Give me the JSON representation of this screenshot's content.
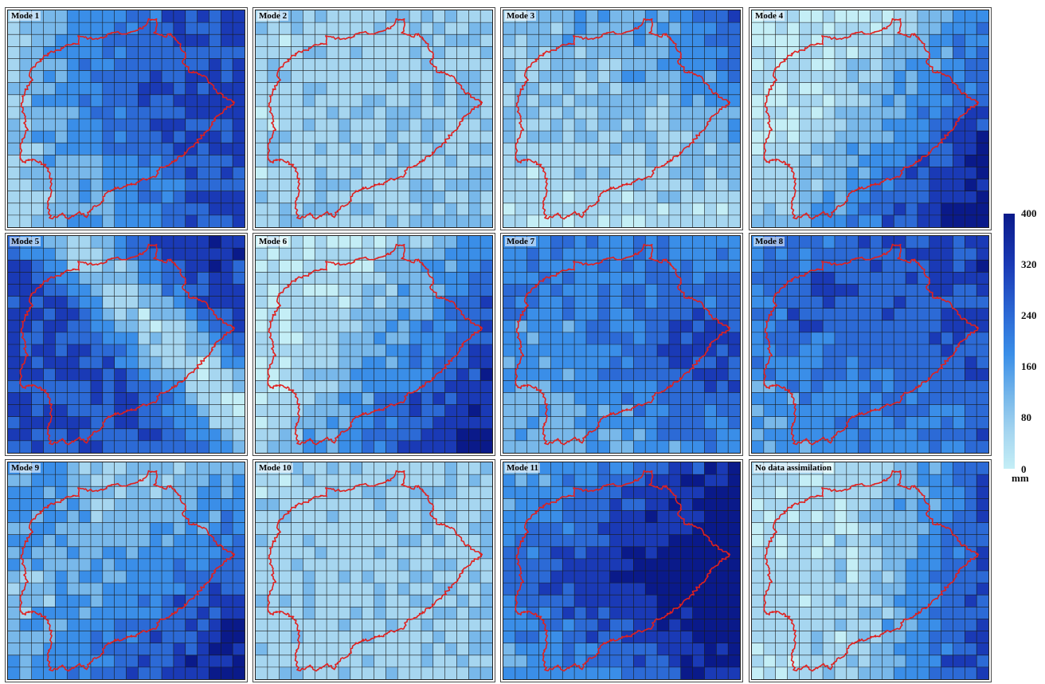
{
  "panels": [
    {
      "label": "Mode 1",
      "pattern": "center-east-high"
    },
    {
      "label": "Mode 2",
      "pattern": "uniform-low"
    },
    {
      "label": "Mode 3",
      "pattern": "north-moderate"
    },
    {
      "label": "Mode 4",
      "pattern": "southeast-diagonal-high"
    },
    {
      "label": "Mode 5",
      "pattern": "northwest-southeast-high-middle-low"
    },
    {
      "label": "Mode 6",
      "pattern": "southeast-diagonal-high"
    },
    {
      "label": "Mode 7",
      "pattern": "mixed-moderate"
    },
    {
      "label": "Mode 8",
      "pattern": "mixed-high"
    },
    {
      "label": "Mode 9",
      "pattern": "southeast-high"
    },
    {
      "label": "Mode 10",
      "pattern": "uniform-low"
    },
    {
      "label": "Mode 11",
      "pattern": "east-very-high"
    },
    {
      "label": "No data assimilation",
      "pattern": "east-moderate"
    }
  ],
  "colorbar": {
    "ticks": [
      "400",
      "320",
      "240",
      "160",
      "80",
      "0"
    ],
    "unit": "mm",
    "min": 0,
    "max": 400,
    "colors": [
      "#c4eef6",
      "#a6d6f0",
      "#78b8ea",
      "#3a8ee8",
      "#2c6ad6",
      "#1a3ab6",
      "#0a1a8a"
    ]
  },
  "boundary_color": "#e0201e",
  "grid_color": "#1a1a1a"
}
